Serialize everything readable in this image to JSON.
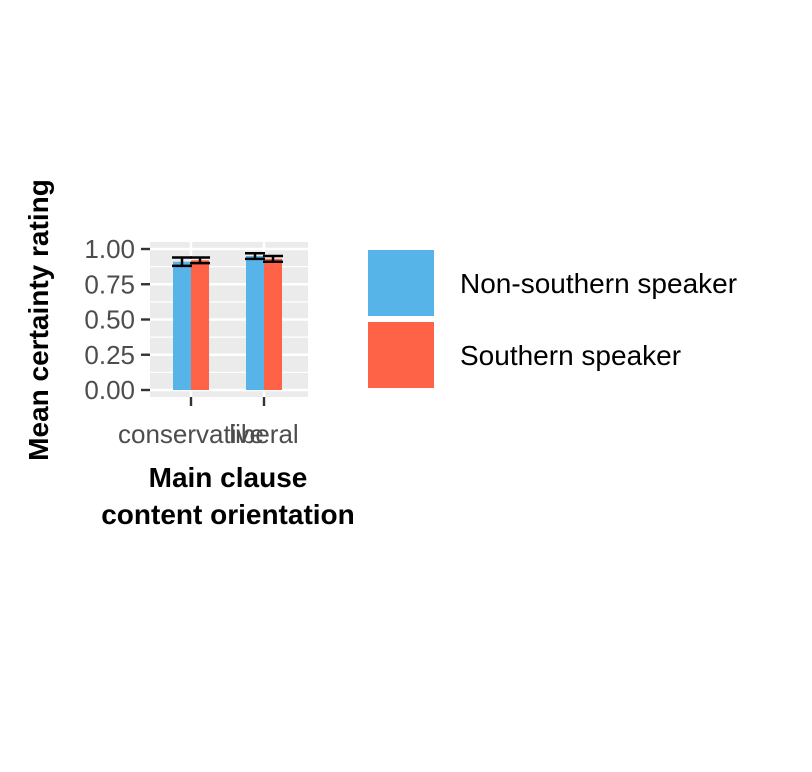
{
  "chart_data": {
    "type": "bar",
    "categories": [
      "conservative",
      "liberal"
    ],
    "series": [
      {
        "name": "Non-southern speaker",
        "values": [
          0.91,
          0.95
        ],
        "error": [
          0.03,
          0.02
        ],
        "color": "#56B4E9"
      },
      {
        "name": "Southern speaker",
        "values": [
          0.92,
          0.93
        ],
        "error": [
          0.02,
          0.02
        ],
        "color": "#FF6347"
      }
    ],
    "xlabel_lines": [
      "Main clause",
      "content orientation"
    ],
    "ylabel": "Mean certainty rating",
    "ylim": [
      0,
      1
    ],
    "yticks": [
      0,
      0.25,
      0.5,
      0.75,
      1
    ],
    "ytick_labels": [
      "0.00",
      "0.25",
      "0.50",
      "0.75",
      "1.00"
    ],
    "grid": true,
    "panel_background": "#EBEBEB",
    "legend_position": "right"
  }
}
